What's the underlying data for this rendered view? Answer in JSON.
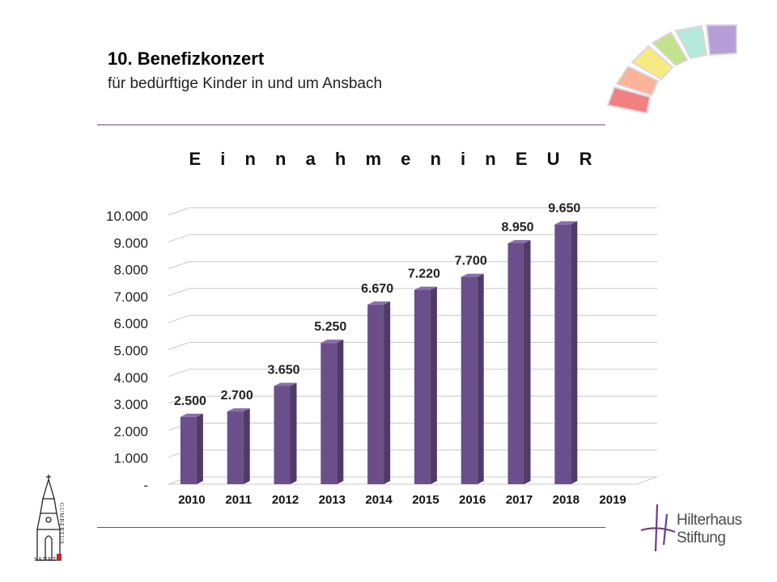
{
  "header": {
    "title": "10. Benefizkonzert",
    "subtitle": "für bedürftige Kinder in und um Ansbach"
  },
  "colors": {
    "bar": "#6b4f8a",
    "bar_side": "#4f3a68",
    "bar_top": "#8a6fab",
    "divider": "#6a4a8c"
  },
  "chart_data": {
    "type": "bar",
    "title": "E i n n a h m e n   i n   E U R",
    "categories": [
      "2010",
      "2011",
      "2012",
      "2013",
      "2014",
      "2015",
      "2016",
      "2017",
      "2018",
      "2019"
    ],
    "values": [
      2500,
      2700,
      3650,
      5250,
      6670,
      7220,
      7700,
      8950,
      9650,
      null
    ],
    "data_labels": [
      "2.500",
      "2.700",
      "3.650",
      "5.250",
      "6.670",
      "7.220",
      "7.700",
      "8.950",
      "9.650",
      ""
    ],
    "ylim": [
      0,
      10000
    ],
    "y_ticks": [
      0,
      1000,
      2000,
      3000,
      4000,
      5000,
      6000,
      7000,
      8000,
      9000,
      10000
    ],
    "y_tick_labels": [
      "-",
      "1.000",
      "2.000",
      "3.000",
      "4.000",
      "5.000",
      "6.000",
      "7.000",
      "8.000",
      "9.000",
      "10.000"
    ],
    "grid": true,
    "legend": "none",
    "style": "3d-column"
  },
  "logos": {
    "church_left": "SANKT",
    "church_right": "GUMBERTUS",
    "foundation_line1": "Hilterhaus",
    "foundation_line2": "Stiftung"
  },
  "icons": {
    "rainbow": "rainbow-arc-icon",
    "church": "church-tower-icon",
    "foundation": "foundation-monogram-icon"
  }
}
